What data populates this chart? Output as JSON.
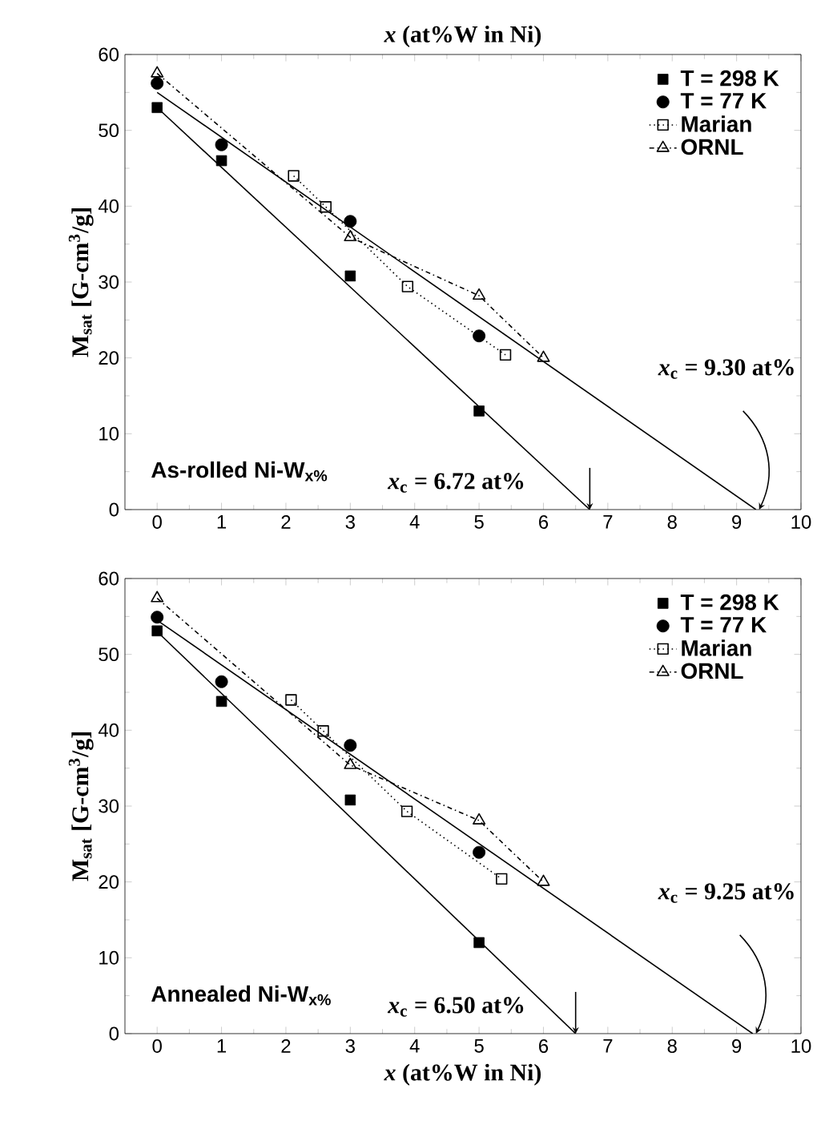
{
  "chart_data": [
    {
      "type": "scatter",
      "xlabel": "*x* (at%W in Ni)",
      "ylabel": "M$_{sat}$ [G-cm$^{3}$/g]",
      "xlim": [
        -0.5,
        10
      ],
      "ylim": [
        0,
        60
      ],
      "xticks": [
        0,
        1,
        2,
        3,
        4,
        5,
        6,
        7,
        8,
        9,
        10
      ],
      "yticks": [
        0,
        10,
        20,
        30,
        40,
        50,
        60
      ],
      "legend": "top right",
      "grid": false,
      "annotations": [
        "As-rolled Ni-W$_{x%}$",
        "*x*$_{c}$ = 6.72 at%",
        "*x*$_{c}$ = 9.30 at%"
      ],
      "series": [
        {
          "name": "T = 298 K",
          "marker": "square",
          "color": "#000000",
          "x": [
            0,
            1,
            3,
            5
          ],
          "values": [
            53.0,
            46.0,
            30.8,
            13.0
          ]
        },
        {
          "name": "T = 77 K",
          "marker": "circle",
          "color": "#000000",
          "x": [
            0,
            1,
            3,
            5
          ],
          "values": [
            56.2,
            48.1,
            38.0,
            22.9
          ]
        },
        {
          "name": "Marian",
          "type": "line",
          "marker": "square",
          "line_style": "dotted",
          "color": "#000000",
          "x": [
            2.12,
            2.62,
            3.89,
            5.41
          ],
          "values": [
            44.0,
            39.9,
            29.4,
            20.4
          ]
        },
        {
          "name": "ORNL",
          "type": "line",
          "marker": "triangle",
          "line_style": "dashdot",
          "color": "#000000",
          "x": [
            0,
            3,
            5,
            6
          ],
          "values": [
            57.5,
            35.9,
            28.2,
            20.0
          ]
        },
        {
          "type": "line",
          "marker": "none",
          "line_style": "solid",
          "color": "#000000",
          "x": [
            0,
            6.72
          ],
          "values": [
            53.0,
            0
          ]
        },
        {
          "type": "line",
          "marker": "none",
          "line_style": "solid",
          "color": "#000000",
          "x": [
            0,
            9.3
          ],
          "values": [
            55.0,
            0
          ]
        }
      ]
    },
    {
      "type": "scatter",
      "xlabel": "*x* (at%W in Ni)",
      "ylabel": "M$_{sat}$ [G-cm$^{3}$/g]",
      "xlim": [
        -0.5,
        10
      ],
      "ylim": [
        0,
        60
      ],
      "xticks": [
        0,
        1,
        2,
        3,
        4,
        5,
        6,
        7,
        8,
        9,
        10
      ],
      "yticks": [
        0,
        10,
        20,
        30,
        40,
        50,
        60
      ],
      "legend": "top right",
      "grid": false,
      "annotations": [
        "Annealed Ni-W$_{x%}$",
        "*x*$_{c}$ = 6.50 at%",
        "*x*$_{c}$ = 9.25 at%"
      ],
      "series": [
        {
          "name": "T = 298 K",
          "marker": "square",
          "color": "#000000",
          "x": [
            0,
            1,
            3,
            5
          ],
          "values": [
            53.1,
            43.8,
            30.8,
            12.0
          ]
        },
        {
          "name": "T = 77 K",
          "marker": "circle",
          "color": "#000000",
          "x": [
            0,
            1,
            3,
            5
          ],
          "values": [
            54.9,
            46.4,
            38.0,
            23.9
          ]
        },
        {
          "name": "Marian",
          "type": "line",
          "marker": "square",
          "line_style": "dotted",
          "color": "#000000",
          "x": [
            2.08,
            2.58,
            3.88,
            5.35
          ],
          "values": [
            44.0,
            39.9,
            29.3,
            20.4
          ]
        },
        {
          "name": "ORNL",
          "type": "line",
          "marker": "triangle",
          "line_style": "dashdot",
          "color": "#000000",
          "x": [
            0,
            3,
            5,
            6
          ],
          "values": [
            57.4,
            35.4,
            28.1,
            20.0
          ]
        },
        {
          "type": "line",
          "marker": "none",
          "line_style": "solid",
          "color": "#000000",
          "x": [
            0,
            6.5
          ],
          "values": [
            53.0,
            0
          ]
        },
        {
          "type": "line",
          "marker": "none",
          "line_style": "solid",
          "color": "#000000",
          "x": [
            0,
            9.25
          ],
          "values": [
            54.5,
            0
          ]
        }
      ]
    }
  ]
}
